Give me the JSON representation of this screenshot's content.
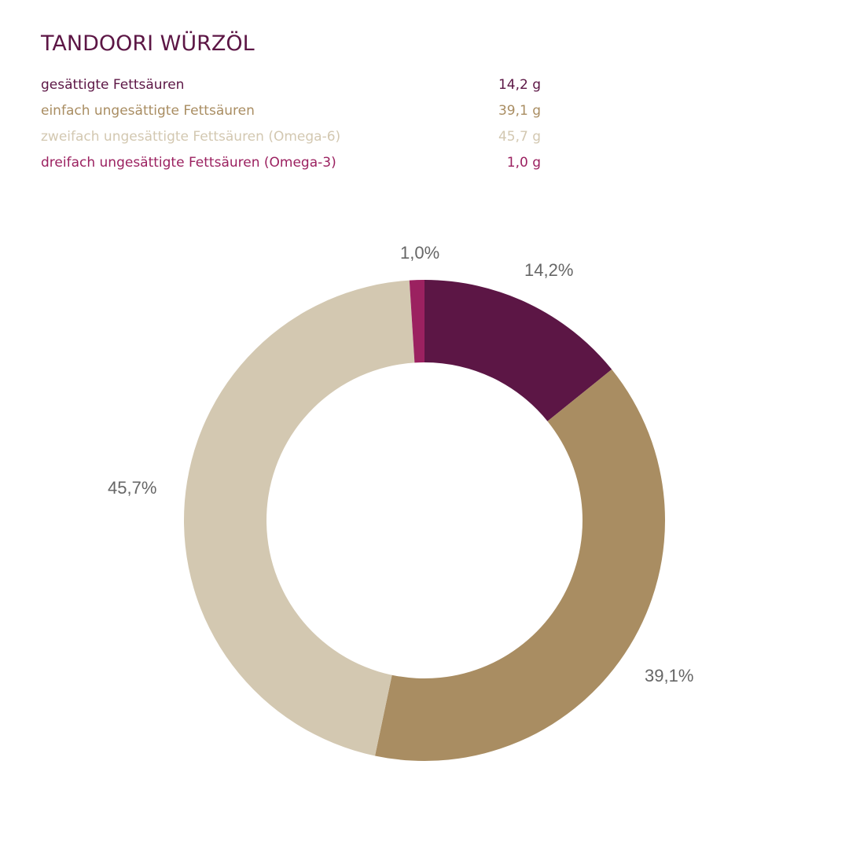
{
  "title": "TANDOORI WÜRZÖL",
  "legend": [
    {
      "label": "gesättigte Fettsäuren",
      "value": "14,2 g",
      "color": "#5c1645"
    },
    {
      "label": "einfach ungesättigte Fettsäuren",
      "value": "39,1 g",
      "color": "#a98d62"
    },
    {
      "label": "zweifach ungesättigte Fettsäuren (Omega-6)",
      "value": "45,7 g",
      "color": "#d3c8b1"
    },
    {
      "label": "dreifach ungesättigte Fettsäuren (Omega-3)",
      "value": "1,0 g",
      "color": "#9b2160"
    }
  ],
  "slice_labels": [
    "14,2%",
    "39,1%",
    "45,7%",
    "1,0%"
  ],
  "chart_data": {
    "type": "pie",
    "subtype": "donut",
    "title": "TANDOORI WÜRZÖL",
    "categories": [
      "gesättigte Fettsäuren",
      "einfach ungesättigte Fettsäuren",
      "zweifach ungesättigte Fettsäuren (Omega-6)",
      "dreifach ungesättigte Fettsäuren (Omega-3)"
    ],
    "values": [
      14.2,
      39.1,
      45.7,
      1.0
    ],
    "units": "g",
    "percent_labels": [
      "14,2%",
      "39,1%",
      "45,7%",
      "1,0%"
    ],
    "colors": [
      "#5c1645",
      "#a98d62",
      "#d3c8b1",
      "#9b2160"
    ],
    "legend_position": "top"
  }
}
